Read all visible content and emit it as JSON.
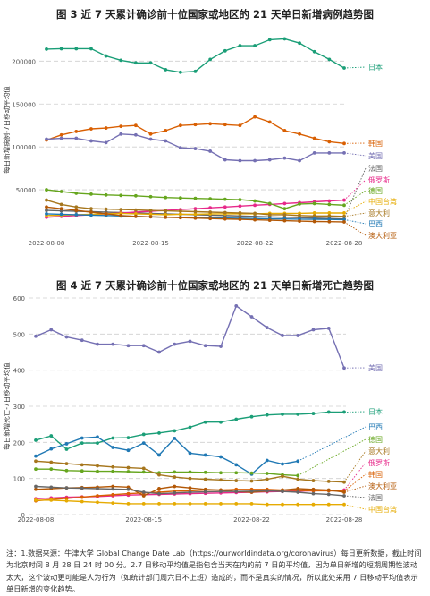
{
  "chart_data": [
    {
      "type": "line",
      "title": "图 3  近 7 天累计确诊前十位国家或地区的 21 天单日新增病例趋势图",
      "xlabel": "",
      "ylabel": "每日新增病例-7日移动平均值",
      "ylim": [
        0,
        240000
      ],
      "yticks": [
        50000,
        100000,
        150000,
        200000
      ],
      "ytick_labels": [
        "50000",
        "100000",
        "150000",
        "200000"
      ],
      "x": [
        "2022-08-08",
        "2022-08-09",
        "2022-08-10",
        "2022-08-11",
        "2022-08-12",
        "2022-08-13",
        "2022-08-14",
        "2022-08-15",
        "2022-08-16",
        "2022-08-17",
        "2022-08-18",
        "2022-08-19",
        "2022-08-20",
        "2022-08-21",
        "2022-08-22",
        "2022-08-23",
        "2022-08-24",
        "2022-08-25",
        "2022-08-26",
        "2022-08-27",
        "2022-08-28"
      ],
      "xtick_labels": [
        "2022-08-08",
        "2022-08-15",
        "2022-08-22",
        "2022-08-28"
      ],
      "grid": true,
      "legend": "right-edge labels",
      "series": [
        {
          "name": "日本",
          "color": "#1a9e77",
          "values": [
            214000,
            214500,
            214500,
            214500,
            206000,
            201000,
            198000,
            198000,
            190000,
            187000,
            188000,
            202000,
            212000,
            218000,
            218000,
            225000,
            226000,
            221000,
            211000,
            202000,
            192000
          ]
        },
        {
          "name": "韩国",
          "color": "#d95f02",
          "values": [
            108000,
            114000,
            118000,
            121000,
            122000,
            124000,
            125000,
            115000,
            119000,
            125000,
            126000,
            127000,
            126000,
            125000,
            135000,
            129000,
            119000,
            115000,
            110000,
            106000,
            104000
          ]
        },
        {
          "name": "美国",
          "color": "#7570b3",
          "values": [
            109000,
            110000,
            110000,
            107000,
            105000,
            115000,
            114000,
            109000,
            107000,
            99000,
            98000,
            95000,
            85000,
            84000,
            84000,
            85000,
            87000,
            84000,
            93000,
            93000,
            93000
          ]
        },
        {
          "name": "法国",
          "color": "#666666",
          "values": [
            26000,
            25500,
            25000,
            24500,
            24000,
            23500,
            23000,
            22500,
            22000,
            21500,
            21000,
            20500,
            20000,
            19500,
            19000,
            18500,
            18000,
            17500,
            17000,
            16500,
            16000
          ]
        },
        {
          "name": "俄罗斯",
          "color": "#e7298a",
          "values": [
            18000,
            19000,
            20000,
            21000,
            22000,
            23000,
            24000,
            25000,
            26000,
            27000,
            28000,
            29000,
            30000,
            31000,
            32000,
            33000,
            34000,
            35000,
            36000,
            37000,
            38000
          ]
        },
        {
          "name": "德国",
          "color": "#66a61e",
          "values": [
            50000,
            48000,
            46000,
            45000,
            44000,
            43500,
            43000,
            42000,
            41000,
            40500,
            40000,
            39500,
            39000,
            38500,
            37000,
            34000,
            28000,
            33500,
            34000,
            33000,
            32000
          ]
        },
        {
          "name": "中国台湾",
          "color": "#e6ab02",
          "values": [
            20000,
            20500,
            21000,
            21500,
            22000,
            22500,
            22000,
            21500,
            21000,
            21500,
            21500,
            22000,
            22000,
            22000,
            22000,
            22500,
            22500,
            22500,
            23000,
            23000,
            23000
          ]
        },
        {
          "name": "意大利",
          "color": "#a6761d",
          "values": [
            38000,
            33000,
            30000,
            28000,
            27500,
            27000,
            26500,
            26000,
            25500,
            25000,
            24500,
            24000,
            23500,
            23000,
            22500,
            21000,
            21000,
            20000,
            19500,
            19500,
            19000
          ]
        },
        {
          "name": "巴西",
          "color": "#1f78b4",
          "values": [
            22000,
            21500,
            21000,
            20500,
            20000,
            19500,
            19000,
            18500,
            18000,
            17800,
            17500,
            17200,
            17000,
            16800,
            16500,
            16200,
            16000,
            15800,
            15600,
            15400,
            15200
          ]
        },
        {
          "name": "澳大利亚",
          "color": "#b35806",
          "values": [
            30000,
            28000,
            26000,
            24000,
            22000,
            20000,
            19000,
            18500,
            18000,
            17500,
            17000,
            16500,
            16000,
            15500,
            15000,
            14500,
            14000,
            13500,
            13000,
            12800,
            12500
          ]
        }
      ]
    },
    {
      "type": "line",
      "title": "图 4  近 7 天累计确诊前十位国家或地区的 21 天单日新增死亡趋势图",
      "xlabel": "",
      "ylabel": "每日新增死亡-7日移动平均值",
      "ylim": [
        0,
        600
      ],
      "yticks": [
        0,
        100,
        200,
        300,
        400,
        500,
        600
      ],
      "ytick_labels": [
        "0",
        "100",
        "200",
        "300",
        "400",
        "500",
        "600"
      ],
      "x": [
        "2022-08-08",
        "2022-08-09",
        "2022-08-10",
        "2022-08-11",
        "2022-08-12",
        "2022-08-13",
        "2022-08-14",
        "2022-08-15",
        "2022-08-16",
        "2022-08-17",
        "2022-08-18",
        "2022-08-19",
        "2022-08-20",
        "2022-08-21",
        "2022-08-22",
        "2022-08-23",
        "2022-08-24",
        "2022-08-25",
        "2022-08-26",
        "2022-08-27",
        "2022-08-28"
      ],
      "xtick_labels": [
        "2022-08-08",
        "2022-08-15",
        "2022-08-22",
        "2022-08-28"
      ],
      "grid": true,
      "legend": "right-edge labels",
      "series": [
        {
          "name": "美国",
          "color": "#7570b3",
          "values": [
            494,
            512,
            492,
            483,
            472,
            472,
            468,
            468,
            450,
            472,
            480,
            468,
            466,
            578,
            548,
            518,
            496,
            496,
            512,
            516,
            406
          ]
        },
        {
          "name": "日本",
          "color": "#1a9e77",
          "values": [
            206,
            218,
            181,
            198,
            198,
            212,
            213,
            222,
            226,
            232,
            242,
            256,
            256,
            264,
            271,
            276,
            278,
            278,
            280,
            284,
            284
          ]
        },
        {
          "name": "巴西",
          "color": "#1f78b4",
          "values": [
            162,
            182,
            196,
            212,
            215,
            186,
            178,
            198,
            165,
            211,
            170,
            165,
            160,
            138,
            112,
            150,
            140,
            148,
            null,
            null,
            null
          ]
        },
        {
          "name": "德国",
          "color": "#66a61e",
          "values": [
            126,
            126,
            122,
            121,
            120,
            120,
            119,
            118,
            116,
            118,
            118,
            117,
            116,
            116,
            115,
            114,
            110,
            108,
            null,
            null,
            null
          ]
        },
        {
          "name": "意大利",
          "color": "#a6761d",
          "values": [
            148,
            145,
            141,
            138,
            135,
            132,
            130,
            128,
            110,
            104,
            100,
            98,
            96,
            94,
            93,
            98,
            106,
            98,
            94,
            92,
            90
          ]
        },
        {
          "name": "俄罗斯",
          "color": "#e7298a",
          "values": [
            44,
            46,
            48,
            49,
            50,
            52,
            54,
            55,
            56,
            57,
            58,
            59,
            60,
            61,
            62,
            63,
            64,
            65,
            66,
            67,
            68
          ]
        },
        {
          "name": "韩国",
          "color": "#d95f02",
          "values": [
            38,
            42,
            45,
            48,
            52,
            55,
            58,
            60,
            62,
            65,
            66,
            68,
            68,
            70,
            70,
            70,
            68,
            67,
            66,
            66,
            65
          ]
        },
        {
          "name": "澳大利亚",
          "color": "#b35806",
          "values": [
            70,
            72,
            74,
            75,
            76,
            78,
            76,
            52,
            72,
            78,
            74,
            70,
            68,
            64,
            62,
            65,
            68,
            72,
            70,
            68,
            62
          ]
        },
        {
          "name": "法国",
          "color": "#666666",
          "values": [
            78,
            76,
            74,
            73,
            72,
            71,
            70,
            62,
            58,
            60,
            62,
            63,
            64,
            64,
            65,
            66,
            64,
            62,
            58,
            56,
            52
          ]
        },
        {
          "name": "中国台湾",
          "color": "#e6ab02",
          "values": [
            40,
            40,
            38,
            36,
            34,
            32,
            30,
            30,
            30,
            30,
            30,
            30,
            30,
            30,
            30,
            28,
            28,
            28,
            28,
            28,
            28
          ]
        }
      ]
    }
  ],
  "labels1": [
    "日本",
    "韩国",
    "美国",
    "法国",
    "俄罗斯",
    "德国",
    "中国台湾",
    "意大利",
    "巴西",
    "澳大利亚"
  ],
  "labels2": [
    "美国",
    "日本",
    "巴西",
    "德国",
    "意大利",
    "俄罗斯",
    "韩国",
    "澳大利亚",
    "法国",
    "中国台湾"
  ],
  "note": "注：1.数据来源：牛津大学 Global Change Date Lab（https://ourworldindata.org/coronavirus）每日更新数据，截止时间为北京时间 8 月 28 日 24 时 00 分。2.7 日移动平均值是指包含当天在内的前 7 日的平均值，因为单日新增的短期周期性波动太大，这个波动更可能是人为行为（如统计部门周六日不上班）造成的，而不是真实的情况，所以此处采用 7 日移动平均值表示单日新增的变化趋势。"
}
